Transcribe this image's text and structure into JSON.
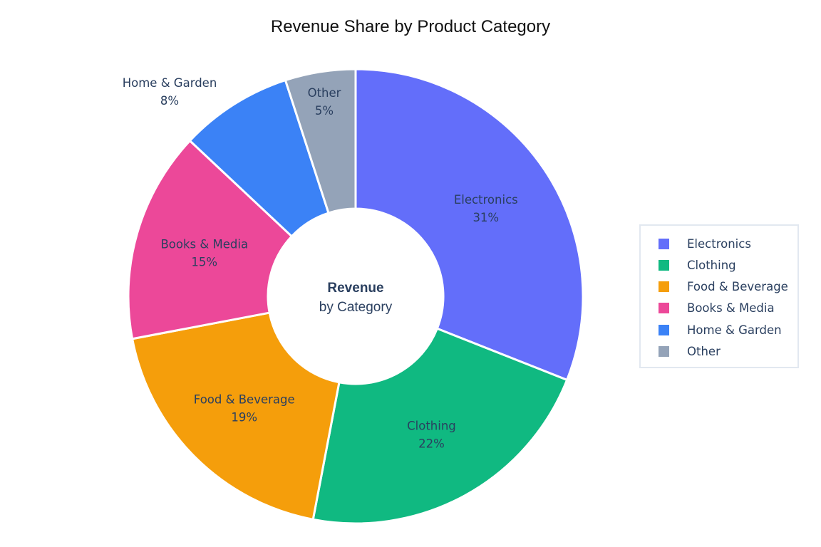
{
  "chart_data": {
    "type": "pie",
    "hole": true,
    "title": "Revenue Share by Product Category",
    "center_text": {
      "line1": "Revenue",
      "line2": "by Category"
    },
    "direction": "clockwise",
    "legend_position": "right",
    "slices": [
      {
        "label": "Electronics",
        "value": 31,
        "text": "31%",
        "color": "#636EFA",
        "text_position": "inside"
      },
      {
        "label": "Clothing",
        "value": 22,
        "text": "22%",
        "color": "#10B981",
        "text_position": "inside"
      },
      {
        "label": "Food & Beverage",
        "value": 19,
        "text": "19%",
        "color": "#F59E0B",
        "text_position": "inside"
      },
      {
        "label": "Books & Media",
        "value": 15,
        "text": "15%",
        "color": "#EC4899",
        "text_position": "inside"
      },
      {
        "label": "Home & Garden",
        "value": 8,
        "text": "8%",
        "color": "#3B82F6",
        "text_position": "outside"
      },
      {
        "label": "Other",
        "value": 5,
        "text": "5%",
        "color": "#94A3B8",
        "text_position": "inside"
      }
    ]
  }
}
